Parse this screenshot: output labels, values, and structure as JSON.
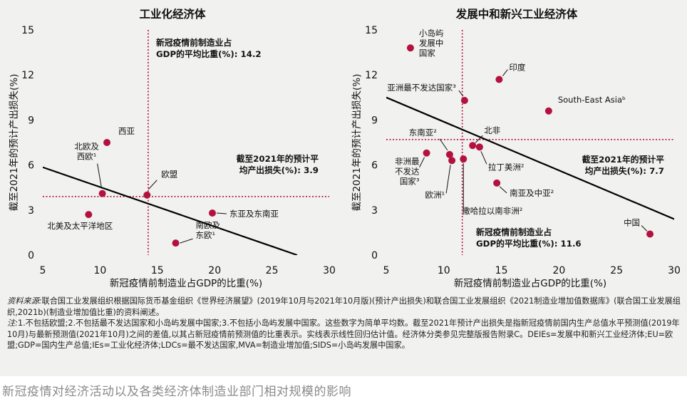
{
  "chart_data": [
    {
      "type": "scatter",
      "title": "工业化经济体",
      "xlabel": "新冠疫情前制造业占GDP的比重(%)",
      "ylabel": "截至2021年的预计产出损失(%)",
      "xlim": [
        5,
        30
      ],
      "ylim": [
        0,
        15
      ],
      "xticks": [
        "5",
        "10",
        "15",
        "20",
        "25",
        "30"
      ],
      "yticks": [
        "0",
        "3",
        "6",
        "9",
        "12",
        "15"
      ],
      "points": [
        {
          "label": "西亚",
          "x": 10.6,
          "y": 7.5
        },
        {
          "label": "北欧及西欧¹",
          "x": 10.2,
          "y": 4.1
        },
        {
          "label": "欧盟",
          "x": 14.1,
          "y": 4.0
        },
        {
          "label": "北美及太平洋地区",
          "x": 9.0,
          "y": 2.7
        },
        {
          "label": "东亚及东南亚",
          "x": 19.8,
          "y": 2.8
        },
        {
          "label": "南欧及东欧¹",
          "x": 16.6,
          "y": 0.8
        }
      ],
      "regression_line": {
        "x": [
          5,
          27.2
        ],
        "y": [
          5.85,
          0.0
        ]
      },
      "vline": {
        "x": 14.2,
        "label": "新冠疫情前制造业占GDP的平均比重(%): 14.2"
      },
      "hline": {
        "y": 3.9,
        "label": "截至2021年的预计平均产出损失(%): 3.9"
      }
    },
    {
      "type": "scatter",
      "title": "发展中和新兴工业经济体",
      "xlabel": "新冠疫情前制造业占GDP的比重(%)",
      "ylabel": "截至2021年的预计产出损失(%)",
      "xlim": [
        5,
        30
      ],
      "ylim": [
        0,
        15
      ],
      "xticks": [
        "5",
        "10",
        "15",
        "20",
        "25",
        "30"
      ],
      "yticks": [
        "0",
        "3",
        "6",
        "9",
        "12",
        "15"
      ],
      "points": [
        {
          "label": "小岛屿发展中国家",
          "x": 7.1,
          "y": 13.8
        },
        {
          "label": "印度",
          "x": 14.8,
          "y": 11.7
        },
        {
          "label": "亚洲最不发达国家³",
          "x": 11.8,
          "y": 10.3
        },
        {
          "label": "South-East Asiaᵇ",
          "x": 19.1,
          "y": 9.6
        },
        {
          "label": "北非",
          "x": 12.5,
          "y": 7.3
        },
        {
          "label": "东南亚²",
          "x": 10.5,
          "y": 6.7
        },
        {
          "label": "非洲最不发达国家³",
          "x": 8.5,
          "y": 6.8
        },
        {
          "label": "欧洲¹",
          "x": 10.7,
          "y": 6.3
        },
        {
          "label": "撒哈拉以南非洲²",
          "x": 11.7,
          "y": 6.4
        },
        {
          "label": "拉丁美洲²",
          "x": 13.1,
          "y": 7.2
        },
        {
          "label": "南亚及中亚²",
          "x": 14.6,
          "y": 4.8
        },
        {
          "label": "中国",
          "x": 27.9,
          "y": 1.4
        }
      ],
      "regression_line": {
        "x": [
          5,
          30
        ],
        "y": [
          10.5,
          2.4
        ]
      },
      "vline": {
        "x": 11.6,
        "label": "新冠疫情前制造业占GDP的平均比重(%): 11.6"
      },
      "hline": {
        "y": 7.7,
        "label": "截至2021年的预计平均产出损失(%): 7.7"
      }
    }
  ],
  "annotations": {
    "left_vline_line1": "新冠疫情前制造业占",
    "left_vline_line2": "GDP的平均比重(%): 14.2",
    "left_hline_line1": "截至2021年的预计平",
    "left_hline_line2": "均产出损失(%): 3.9",
    "right_vline_line1": "新冠疫情前制造业占",
    "right_vline_line2": "GDP的平均比重(%): 11.6",
    "right_hline_line1": "截至2021年的预计平",
    "right_hline_line2": "均产出损失(%): 7.7"
  },
  "source": {
    "label": "资料来源:",
    "text": "联合国工业发展组织根据国际货币基金组织《世界经济展望》(2019年10月与2021年10月版)(预计产出损失)和联合国工业发展组织《2021制造业增加值数据库》(联合国工业发展组织,2021b)(制造业增加值比重)的资料阐述。"
  },
  "notes": {
    "label": "注:",
    "text": "1.不包括欧盟;2.不包括最不发达国家和小岛屿发展中国家;3.不包括小岛屿发展中国家。这些数字为简单平均数。截至2021年预计产出损失是指新冠疫情前国内生产总值水平预测值(2019年10月)与最新预测值(2021年10月)之间的差值,以其占新冠疫情前预测值的比重表示。实线表示线性回归估计值。经济体分类参见完整版报告附录C。DEIEs=发展中和新兴工业经济体;EU=欧盟;GDP=国内生产总值;IEs=工业化经济体;LDCs=最不发达国家,MVA=制造业增加值;SIDS=小岛屿发展中国家。"
  },
  "caption": "新冠疫情对经济活动以及各类经济体制造业部门相对规模的影响",
  "colors": {
    "point": "#b3123e",
    "line": "#000000",
    "reference": "#b3123e",
    "background": "#f1f1f0"
  }
}
